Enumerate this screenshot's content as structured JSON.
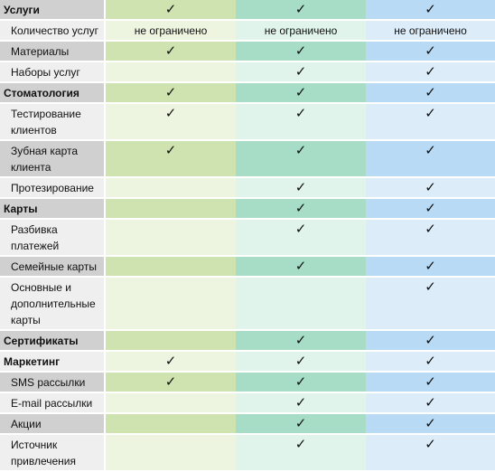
{
  "check_glyph": "✓",
  "colors": {
    "plan1_light": "#edf5e1",
    "plan1_dark": "#cfe3b0",
    "plan2_light": "#e0f4ec",
    "plan2_dark": "#a7ddc7",
    "plan3_light": "#dcecf9",
    "plan3_dark": "#b9daf5",
    "label_light": "#efefef",
    "label_dark": "#d0d0d0"
  },
  "rows": [
    {
      "label": "Услуги",
      "section": true,
      "shade": "dark",
      "cells": [
        "check",
        "check",
        "check"
      ]
    },
    {
      "label": "Количество услуг",
      "section": false,
      "shade": "light",
      "cells": [
        "не ограничено",
        "не ограничено",
        "не ограничено"
      ]
    },
    {
      "label": "Материалы",
      "section": false,
      "shade": "dark",
      "cells": [
        "check",
        "check",
        "check"
      ]
    },
    {
      "label": "Наборы услуг",
      "section": false,
      "shade": "light",
      "cells": [
        "",
        "check",
        "check"
      ]
    },
    {
      "label": "Стоматология",
      "section": true,
      "shade": "dark",
      "cells": [
        "check",
        "check",
        "check"
      ]
    },
    {
      "label": "Тестирование клиентов",
      "section": false,
      "shade": "light",
      "cells": [
        "check",
        "check",
        "check"
      ]
    },
    {
      "label": "Зубная карта клиента",
      "section": false,
      "shade": "dark",
      "cells": [
        "check",
        "check",
        "check"
      ]
    },
    {
      "label": "Протезирование",
      "section": false,
      "shade": "light",
      "cells": [
        "",
        "check",
        "check"
      ]
    },
    {
      "label": "Карты",
      "section": true,
      "shade": "dark",
      "cells": [
        "",
        "check",
        "check"
      ]
    },
    {
      "label": "Разбивка платежей",
      "section": false,
      "shade": "light",
      "cells": [
        "",
        "check",
        "check"
      ]
    },
    {
      "label": "Семейные карты",
      "section": false,
      "shade": "dark",
      "cells": [
        "",
        "check",
        "check"
      ]
    },
    {
      "label": "Основные и дополнительные карты",
      "section": false,
      "shade": "light",
      "cells": [
        "",
        "",
        "check"
      ]
    },
    {
      "label": "Сертификаты",
      "section": true,
      "shade": "dark",
      "cells": [
        "",
        "check",
        "check"
      ]
    },
    {
      "label": "Маркетинг",
      "section": true,
      "shade": "light",
      "cells": [
        "check",
        "check",
        "check"
      ]
    },
    {
      "label": "SMS рассылки",
      "section": false,
      "shade": "dark",
      "cells": [
        "check",
        "check",
        "check"
      ]
    },
    {
      "label": "E-mail рассылки",
      "section": false,
      "shade": "light",
      "cells": [
        "",
        "check",
        "check"
      ]
    },
    {
      "label": "Акции",
      "section": false,
      "shade": "dark",
      "cells": [
        "",
        "check",
        "check"
      ]
    },
    {
      "label": "Источник привлечения",
      "section": false,
      "shade": "light",
      "cells": [
        "",
        "check",
        "check"
      ]
    }
  ]
}
